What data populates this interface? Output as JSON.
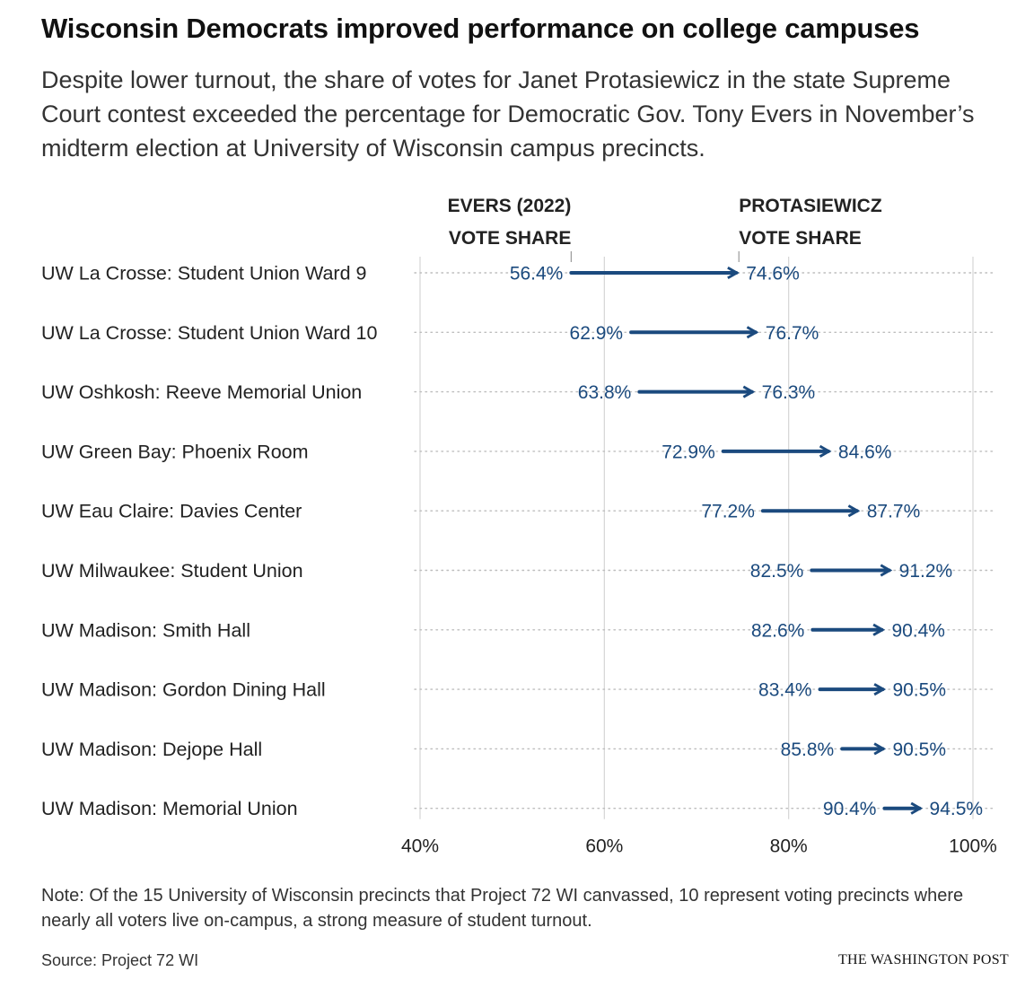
{
  "title": "Wisconsin Democrats improved performance on college campuses",
  "subtitle": "Despite lower turnout, the share of votes for Janet Protasiewicz in the state Supreme Court contest exceeded the percentage for Democratic Gov. Tony Evers in November’s midterm election at University of Wisconsin campus precincts.",
  "note": "Note: Of the 15 University of Wisconsin precincts that Project 72 WI canvassed, 10 represent voting precincts where nearly all voters live on-campus, a strong measure of student turnout.",
  "source": "Source: Project 72 WI",
  "brand": "THE WASHINGTON POST",
  "colors": {
    "arrow": "#1b4a7e",
    "label": "#1b4a7e",
    "grid": "#d6d6d6",
    "dots": "#bdbdbd"
  },
  "chart_data": {
    "type": "arrow-dot",
    "xlim": [
      40,
      100
    ],
    "x_ticks": [
      "40%",
      "60%",
      "80%",
      "100%"
    ],
    "x_tick_values": [
      40,
      60,
      80,
      100
    ],
    "grid": true,
    "start_header": [
      "EVERS (2022)",
      "VOTE SHARE"
    ],
    "end_header": [
      "PROTASIEWICZ",
      "VOTE SHARE"
    ],
    "categories": [
      "UW La Crosse: Student Union Ward 9",
      "UW La Crosse: Student Union Ward 10",
      "UW Oshkosh: Reeve Memorial Union",
      "UW Green Bay: Phoenix Room",
      "UW Eau Claire: Davies Center",
      "UW Milwaukee: Student Union",
      "UW Madison: Smith Hall",
      "UW Madison: Gordon Dining Hall",
      "UW Madison: Dejope Hall",
      "UW Madison: Memorial Union"
    ],
    "series": [
      {
        "name": "EVERS (2022) VOTE SHARE",
        "values": [
          56.4,
          62.9,
          63.8,
          72.9,
          77.2,
          82.5,
          82.6,
          83.4,
          85.8,
          90.4
        ]
      },
      {
        "name": "PROTASIEWICZ VOTE SHARE",
        "values": [
          74.6,
          76.7,
          76.3,
          84.6,
          87.7,
          91.2,
          90.4,
          90.5,
          90.5,
          94.5
        ]
      }
    ],
    "start_labels": [
      "56.4%",
      "62.9%",
      "63.8%",
      "72.9%",
      "77.2%",
      "82.5%",
      "82.6%",
      "83.4%",
      "85.8%",
      "90.4%"
    ],
    "end_labels": [
      "74.6%",
      "76.7%",
      "76.3%",
      "84.6%",
      "87.7%",
      "91.2%",
      "90.4%",
      "90.5%",
      "90.5%",
      "94.5%"
    ]
  }
}
